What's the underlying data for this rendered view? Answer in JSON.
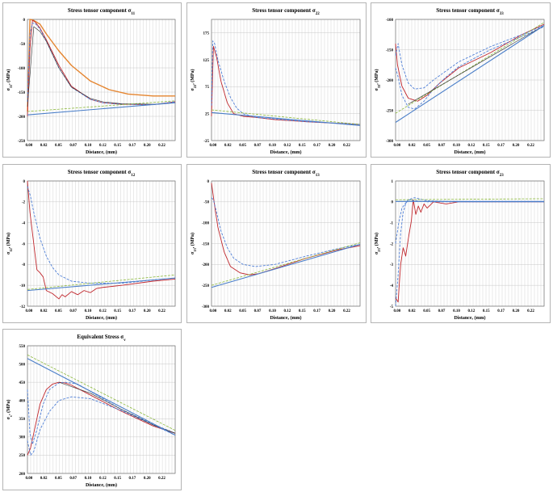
{
  "colors": {
    "grid": "#c8c8c8",
    "frame": "#707070",
    "red": "#c0272d",
    "dashed_blue": "#4f7fd6",
    "dark_blue": "#3a5f9c",
    "solid_blue": "#4a7ec8",
    "green_dash": "#8ab83a",
    "orange": "#e5852f",
    "black": "#2a2a2a"
  },
  "x_ticks": [
    "0.00",
    "0.02",
    "0.05",
    "0.07",
    "0.10",
    "0.12",
    "0.15",
    "0.17",
    "0.20",
    "0.22"
  ],
  "chart_data": [
    {
      "id": "s11",
      "type": "line",
      "title_main": "Stress tensor component σ",
      "title_sub": "11",
      "ylabel_main": "σ",
      "ylabel_sub": "11",
      "ylabel_unit": ", (MPa)",
      "xlabel": "Distance, (mm)",
      "xlim": [
        0,
        0.235
      ],
      "ylim": [
        -250,
        0
      ],
      "y_ticks": [
        0,
        -50,
        -100,
        -150,
        -200,
        -250
      ],
      "series": [
        {
          "color": "orange",
          "dash": false,
          "width": 1.4,
          "x": [
            0,
            0.004,
            0.01,
            0.02,
            0.03,
            0.05,
            0.07,
            0.1,
            0.13,
            0.16,
            0.2,
            0.235
          ],
          "y": [
            -190,
            0,
            -2,
            -10,
            -30,
            -65,
            -95,
            -127,
            -145,
            -154,
            -158,
            -158
          ]
        },
        {
          "color": "red",
          "dash": false,
          "width": 0.9,
          "x": [
            0,
            0.004,
            0.008,
            0.012,
            0.02,
            0.03,
            0.05,
            0.07,
            0.1,
            0.12,
            0.15,
            0.2,
            0.235
          ],
          "y": [
            -200,
            -60,
            -2,
            -5,
            -18,
            -42,
            -95,
            -138,
            -165,
            -172,
            -175,
            -176,
            -170
          ]
        },
        {
          "color": "dashed_blue",
          "dash": true,
          "width": 0.9,
          "x": [
            0,
            0.004,
            0.008,
            0.012,
            0.02,
            0.03,
            0.05,
            0.07,
            0.1,
            0.12,
            0.15,
            0.2,
            0.235
          ],
          "y": [
            -170,
            -30,
            -8,
            -8,
            -20,
            -45,
            -100,
            -140,
            -165,
            -172,
            -175,
            -176,
            -170
          ]
        },
        {
          "color": "black",
          "dash": false,
          "width": 0.6,
          "x": [
            0,
            0.01,
            0.02,
            0.03,
            0.05,
            0.07,
            0.1,
            0.12,
            0.15,
            0.2,
            0.235
          ],
          "y": [
            -180,
            -15,
            -25,
            -45,
            -100,
            -140,
            -163,
            -170,
            -174,
            -175,
            -172
          ]
        },
        {
          "color": "green_dash",
          "dash": true,
          "width": 0.8,
          "x": [
            0,
            0.235
          ],
          "y": [
            -190,
            -168
          ]
        },
        {
          "color": "solid_blue",
          "dash": false,
          "width": 1.1,
          "x": [
            0,
            0.235
          ],
          "y": [
            -197,
            -172
          ]
        }
      ]
    },
    {
      "id": "s22",
      "type": "line",
      "title_main": "Stress tensor component σ",
      "title_sub": "22",
      "ylabel_main": "σ",
      "ylabel_sub": "22",
      "ylabel_unit": ", (MPa)",
      "xlabel": "Distance, (mm)",
      "xlim": [
        0,
        0.235
      ],
      "ylim": [
        -25,
        200
      ],
      "y_ticks": [
        175,
        125,
        75,
        25,
        -25
      ],
      "series": [
        {
          "color": "red",
          "dash": false,
          "width": 0.9,
          "x": [
            0,
            0.003,
            0.008,
            0.015,
            0.025,
            0.035,
            0.05,
            0.07,
            0.1,
            0.15,
            0.235
          ],
          "y": [
            20,
            150,
            130,
            85,
            45,
            25,
            20,
            18,
            14,
            10,
            5
          ]
        },
        {
          "color": "dashed_blue",
          "dash": true,
          "width": 0.9,
          "x": [
            0,
            0.002,
            0.005,
            0.01,
            0.02,
            0.03,
            0.04,
            0.05,
            0.07,
            0.1,
            0.15,
            0.235
          ],
          "y": [
            40,
            160,
            155,
            125,
            85,
            55,
            35,
            25,
            18,
            15,
            10,
            5
          ]
        },
        {
          "color": "green_dash",
          "dash": true,
          "width": 0.8,
          "x": [
            0,
            0.235
          ],
          "y": [
            32,
            5
          ]
        },
        {
          "color": "solid_blue",
          "dash": false,
          "width": 1.1,
          "x": [
            0,
            0.235
          ],
          "y": [
            27,
            3
          ]
        }
      ]
    },
    {
      "id": "s33",
      "type": "line",
      "title_main": "Stress tensor component σ",
      "title_sub": "33",
      "ylabel_main": "σ",
      "ylabel_sub": "33",
      "ylabel_unit": ", (MPa)",
      "xlabel": "Distance, (mm)",
      "xlim": [
        0,
        0.235
      ],
      "ylim": [
        -300,
        -100
      ],
      "y_ticks": [
        -100,
        -150,
        -200,
        -250,
        -300
      ],
      "series": [
        {
          "color": "red",
          "dash": false,
          "width": 0.9,
          "x": [
            0,
            0.003,
            0.01,
            0.02,
            0.035,
            0.05,
            0.07,
            0.1,
            0.15,
            0.2,
            0.235
          ],
          "y": [
            -140,
            -175,
            -210,
            -230,
            -235,
            -225,
            -205,
            -180,
            -155,
            -125,
            -108
          ]
        },
        {
          "color": "dashed_blue",
          "dash": true,
          "width": 0.9,
          "x": [
            0,
            0.004,
            0.01,
            0.02,
            0.03,
            0.045,
            0.06,
            0.08,
            0.1,
            0.15,
            0.2,
            0.235
          ],
          "y": [
            -160,
            -140,
            -175,
            -205,
            -215,
            -213,
            -200,
            -185,
            -170,
            -145,
            -125,
            -110
          ]
        },
        {
          "color": "dashed_blue",
          "dash": true,
          "width": 0.9,
          "x": [
            0,
            0.004,
            0.01,
            0.02,
            0.03,
            0.045,
            0.06,
            0.08,
            0.1,
            0.15,
            0.2,
            0.235
          ],
          "y": [
            -180,
            -195,
            -225,
            -245,
            -248,
            -235,
            -215,
            -195,
            -178,
            -150,
            -128,
            -112
          ]
        },
        {
          "color": "green_dash",
          "dash": true,
          "width": 0.8,
          "x": [
            0,
            0.235
          ],
          "y": [
            -255,
            -105
          ]
        },
        {
          "color": "black",
          "dash": false,
          "width": 0.6,
          "x": [
            0.02,
            0.235
          ],
          "y": [
            -240,
            -110
          ]
        },
        {
          "color": "solid_blue",
          "dash": false,
          "width": 1.1,
          "x": [
            0,
            0.235
          ],
          "y": [
            -270,
            -110
          ]
        }
      ]
    },
    {
      "id": "s12",
      "type": "line",
      "title_main": "Stress tensor component σ",
      "title_sub": "12",
      "ylabel_main": "σ",
      "ylabel_sub": "12",
      "ylabel_unit": ", (MPa)",
      "xlabel": "Distance, (mm)",
      "xlim": [
        0,
        0.235
      ],
      "ylim": [
        -12,
        0
      ],
      "y_ticks": [
        0,
        -2,
        -4,
        -6,
        -8,
        -10,
        -12
      ],
      "series": [
        {
          "color": "red",
          "dash": false,
          "width": 0.9,
          "x": [
            0,
            0.004,
            0.01,
            0.015,
            0.02,
            0.025,
            0.03,
            0.04,
            0.05,
            0.055,
            0.06,
            0.07,
            0.08,
            0.09,
            0.1,
            0.11,
            0.12,
            0.15,
            0.2,
            0.235
          ],
          "y": [
            0,
            -3,
            -6,
            -8.5,
            -8.8,
            -9.2,
            -10.5,
            -10.8,
            -11.3,
            -10.9,
            -11.1,
            -10.6,
            -10.9,
            -10.5,
            -10.7,
            -10.3,
            -10.2,
            -10,
            -9.6,
            -9.4
          ]
        },
        {
          "color": "dashed_blue",
          "dash": true,
          "width": 0.9,
          "x": [
            0,
            0.005,
            0.01,
            0.02,
            0.03,
            0.04,
            0.05,
            0.07,
            0.1,
            0.15,
            0.2,
            0.235
          ],
          "y": [
            -0.5,
            -1.5,
            -3,
            -5.5,
            -7.2,
            -8.3,
            -9,
            -9.6,
            -9.8,
            -9.8,
            -9.5,
            -9.3
          ]
        },
        {
          "color": "green_dash",
          "dash": true,
          "width": 0.8,
          "x": [
            0,
            0.235
          ],
          "y": [
            -10.4,
            -9.0
          ]
        },
        {
          "color": "solid_blue",
          "dash": false,
          "width": 1.1,
          "x": [
            0,
            0.235
          ],
          "y": [
            -10.5,
            -9.3
          ]
        }
      ]
    },
    {
      "id": "s13",
      "type": "line",
      "title_main": "Stress tensor component σ",
      "title_sub": "13",
      "ylabel_main": "σ",
      "ylabel_sub": "13",
      "ylabel_unit": ", (MPa)",
      "xlabel": "Distance, (mm)",
      "xlim": [
        0,
        0.235
      ],
      "ylim": [
        -300,
        0
      ],
      "y_ticks": [
        0,
        -50,
        -100,
        -150,
        -200,
        -250,
        -300
      ],
      "series": [
        {
          "color": "red",
          "dash": false,
          "width": 0.9,
          "x": [
            0,
            0.005,
            0.01,
            0.02,
            0.03,
            0.045,
            0.06,
            0.075,
            0.1,
            0.15,
            0.2,
            0.235
          ],
          "y": [
            -5,
            -60,
            -110,
            -170,
            -205,
            -220,
            -225,
            -222,
            -210,
            -185,
            -165,
            -155
          ]
        },
        {
          "color": "dashed_blue",
          "dash": true,
          "width": 0.9,
          "x": [
            0,
            0.003,
            0.008,
            0.015,
            0.025,
            0.035,
            0.05,
            0.07,
            0.1,
            0.15,
            0.2,
            0.235
          ],
          "y": [
            -40,
            -45,
            -75,
            -120,
            -160,
            -185,
            -200,
            -205,
            -200,
            -180,
            -162,
            -152
          ]
        },
        {
          "color": "green_dash",
          "dash": true,
          "width": 0.8,
          "x": [
            0,
            0.235
          ],
          "y": [
            -250,
            -148
          ]
        },
        {
          "color": "solid_blue",
          "dash": false,
          "width": 1.1,
          "x": [
            0,
            0.235
          ],
          "y": [
            -255,
            -152
          ]
        }
      ]
    },
    {
      "id": "s23",
      "type": "line",
      "title_main": "Stress tensor component σ",
      "title_sub": "23",
      "ylabel_main": "σ",
      "ylabel_sub": "23",
      "ylabel_unit": ", (MPa)",
      "xlabel": "Distance, (mm)",
      "xlim": [
        0,
        0.235
      ],
      "ylim": [
        -5,
        1
      ],
      "y_ticks": [
        1,
        0,
        -1,
        -2,
        -3,
        -4,
        -5
      ],
      "series": [
        {
          "color": "red",
          "dash": false,
          "width": 0.9,
          "x": [
            0,
            0.004,
            0.008,
            0.012,
            0.016,
            0.02,
            0.025,
            0.028,
            0.032,
            0.036,
            0.04,
            0.045,
            0.05,
            0.06,
            0.08,
            0.1,
            0.15,
            0.235
          ],
          "y": [
            -4.6,
            -4.8,
            -3,
            -2.2,
            -2.6,
            -1.8,
            -0.9,
            0.1,
            -0.6,
            -0.2,
            -0.5,
            -0.1,
            -0.3,
            0,
            -0.1,
            0,
            0,
            0
          ]
        },
        {
          "color": "dashed_blue",
          "dash": true,
          "width": 0.9,
          "x": [
            0,
            0.004,
            0.008,
            0.012,
            0.016,
            0.02,
            0.03,
            0.05,
            0.1,
            0.235
          ],
          "y": [
            -5,
            -3.5,
            -1.5,
            -0.5,
            -0.1,
            0.1,
            0.05,
            0,
            0,
            0
          ]
        },
        {
          "color": "dashed_blue",
          "dash": true,
          "width": 0.9,
          "x": [
            0,
            0.005,
            0.01,
            0.02,
            0.03,
            0.05,
            0.1,
            0.235
          ],
          "y": [
            -2,
            -1,
            -0.3,
            0.1,
            0.2,
            0.05,
            0,
            0
          ]
        },
        {
          "color": "green_dash",
          "dash": true,
          "width": 0.8,
          "x": [
            0,
            0.235
          ],
          "y": [
            0.1,
            0.15
          ]
        },
        {
          "color": "solid_blue",
          "dash": false,
          "width": 1.1,
          "x": [
            0,
            0.235
          ],
          "y": [
            0.02,
            0.02
          ]
        }
      ]
    },
    {
      "id": "sv",
      "type": "line",
      "title_main": "Equivalent Stress σ",
      "title_sub": "v",
      "ylabel_main": "σ",
      "ylabel_sub": "v",
      "ylabel_unit": ", (MPa)",
      "xlabel": "Distance, (mm)",
      "xlim": [
        0,
        0.235
      ],
      "ylim": [
        200,
        550
      ],
      "y_ticks": [
        550,
        500,
        450,
        400,
        350,
        300,
        250,
        200
      ],
      "series": [
        {
          "color": "red",
          "dash": false,
          "width": 0.9,
          "x": [
            0,
            0.005,
            0.01,
            0.02,
            0.03,
            0.04,
            0.05,
            0.06,
            0.07,
            0.1,
            0.15,
            0.2,
            0.235
          ],
          "y": [
            250,
            270,
            310,
            390,
            430,
            445,
            450,
            448,
            442,
            415,
            370,
            330,
            310
          ]
        },
        {
          "color": "dashed_blue",
          "dash": true,
          "width": 0.9,
          "x": [
            0,
            0.004,
            0.008,
            0.015,
            0.025,
            0.035,
            0.05,
            0.06,
            0.08,
            0.1,
            0.15,
            0.2,
            0.235
          ],
          "y": [
            430,
            310,
            280,
            320,
            390,
            430,
            448,
            450,
            445,
            425,
            375,
            335,
            310
          ]
        },
        {
          "color": "dashed_blue",
          "dash": true,
          "width": 0.9,
          "x": [
            0,
            0.005,
            0.01,
            0.02,
            0.035,
            0.05,
            0.07,
            0.1,
            0.15,
            0.2,
            0.235
          ],
          "y": [
            290,
            250,
            260,
            320,
            370,
            400,
            410,
            405,
            372,
            333,
            305
          ]
        },
        {
          "color": "black",
          "dash": false,
          "width": 0.6,
          "x": [
            0.05,
            0.1,
            0.15,
            0.2,
            0.235
          ],
          "y": [
            450,
            420,
            375,
            333,
            310
          ]
        },
        {
          "color": "green_dash",
          "dash": true,
          "width": 0.8,
          "x": [
            0,
            0.235
          ],
          "y": [
            525,
            318
          ]
        },
        {
          "color": "solid_blue",
          "dash": false,
          "width": 1.1,
          "x": [
            0,
            0.235
          ],
          "y": [
            515,
            305
          ]
        }
      ]
    }
  ]
}
